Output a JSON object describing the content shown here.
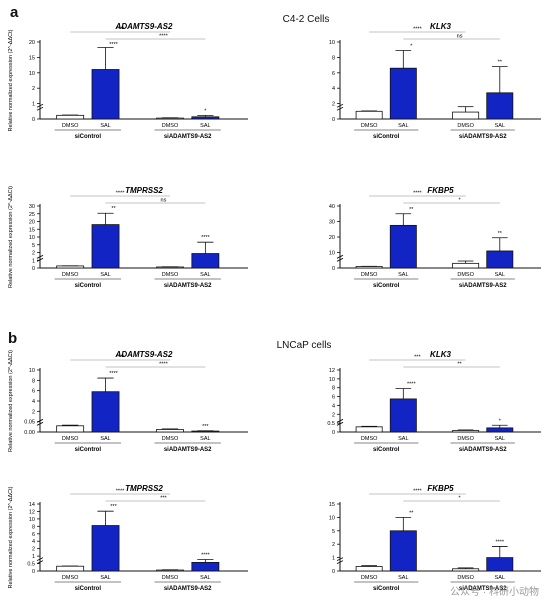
{
  "panels": [
    {
      "letter": "a",
      "section_title": "C4-2 Cells"
    },
    {
      "letter": "b",
      "section_title": "LNCaP cells"
    }
  ],
  "watermark": "公众号 · 科研小动物",
  "colors": {
    "bar_fill": "#1224c4",
    "ctrl_fill": "#ffffff",
    "axis": "#111111",
    "bracket": "#888888"
  },
  "chart_data": [
    {
      "type": "bar",
      "title": "ADAMTS9-AS2",
      "ylabel": "Relative normalized expression (2^-ΔΔCt)",
      "categories": [
        "DMSO",
        "SAL",
        "DMSO",
        "SAL"
      ],
      "groups": [
        "siControl",
        "siADAMTS9-AS2"
      ],
      "values": [
        1.0,
        13.5,
        0.25,
        0.6
      ],
      "errors": [
        0.1,
        6.0,
        0.1,
        0.35
      ],
      "yticks": [
        "0",
        "1",
        "2",
        "10",
        "15",
        "20"
      ],
      "ylim": [
        0,
        21
      ],
      "annotations": [
        "****",
        "****",
        "****",
        "*"
      ]
    },
    {
      "type": "bar",
      "title": "KLK3",
      "ylabel": "",
      "categories": [
        "DMSO",
        "SAL",
        "DMSO",
        "SAL"
      ],
      "groups": [
        "siControl",
        "siADAMTS9-AS2"
      ],
      "values": [
        1.0,
        6.6,
        0.9,
        3.4
      ],
      "errors": [
        0.05,
        2.3,
        0.7,
        3.4
      ],
      "yticks": [
        "0",
        "2",
        "4",
        "6",
        "8",
        "10"
      ],
      "ylim": [
        0,
        10
      ],
      "annotations": [
        "****",
        "ns",
        "*",
        "**"
      ]
    },
    {
      "type": "bar",
      "title": "TMPRSS2",
      "ylabel": "Relative normalized expression (2^-ΔΔCt)",
      "categories": [
        "DMSO",
        "SAL",
        "DMSO",
        "SAL"
      ],
      "groups": [
        "siControl",
        "siADAMTS9-AS2"
      ],
      "values": [
        1.0,
        21.0,
        0.5,
        7.0
      ],
      "errors": [
        0.1,
        5.5,
        0.1,
        5.5
      ],
      "yticks": [
        "0",
        "1",
        "2",
        "5",
        "10",
        "15",
        "20",
        "25",
        "30"
      ],
      "ylim": [
        0,
        30
      ],
      "annotations": [
        "****",
        "ns",
        "**",
        "****"
      ]
    },
    {
      "type": "bar",
      "title": "FKBP5",
      "ylabel": "",
      "categories": [
        "DMSO",
        "SAL",
        "DMSO",
        "SAL"
      ],
      "groups": [
        "siControl",
        "siADAMTS9-AS2"
      ],
      "values": [
        1.0,
        27.5,
        3.0,
        11.0
      ],
      "errors": [
        0.1,
        7.5,
        1.5,
        8.5
      ],
      "yticks": [
        "0",
        "10",
        "20",
        "30",
        "40"
      ],
      "ylim": [
        0,
        40
      ],
      "annotations": [
        "****",
        "*",
        "**",
        "**"
      ]
    },
    {
      "type": "bar",
      "title": "ADAMTS9-AS2",
      "ylabel": "Relative normalized expression (2^-ΔΔCt)",
      "categories": [
        "DMSO",
        "SAL",
        "DMSO",
        "SAL"
      ],
      "groups": [
        "siControl",
        "siADAMTS9-AS2"
      ],
      "values": [
        1.0,
        6.5,
        0.4,
        0.15
      ],
      "errors": [
        0.1,
        2.2,
        0.1,
        0.05
      ],
      "yticks": [
        "0.00",
        "0.05",
        "2",
        "4",
        "6",
        "8",
        "10"
      ],
      "ylim": [
        0,
        10
      ],
      "annotations": [
        "****",
        "****",
        "****",
        "***"
      ]
    },
    {
      "type": "bar",
      "title": "KLK3",
      "ylabel": "",
      "categories": [
        "DMSO",
        "SAL",
        "DMSO",
        "SAL"
      ],
      "groups": [
        "siControl",
        "siADAMTS9-AS2"
      ],
      "values": [
        1.0,
        6.4,
        0.3,
        0.8
      ],
      "errors": [
        0.1,
        2.0,
        0.1,
        0.5
      ],
      "yticks": [
        "0",
        "0.5",
        "2",
        "4",
        "6",
        "8",
        "10",
        "12"
      ],
      "ylim": [
        0,
        12
      ],
      "annotations": [
        "***",
        "**",
        "****",
        "*"
      ]
    },
    {
      "type": "bar",
      "title": "TMPRSS2",
      "ylabel": "Relative normalized expression (2^-ΔΔCt)",
      "categories": [
        "DMSO",
        "SAL",
        "DMSO",
        "SAL"
      ],
      "groups": [
        "siControl",
        "siADAMTS9-AS2"
      ],
      "values": [
        1.0,
        9.5,
        0.2,
        1.8
      ],
      "errors": [
        0.05,
        3.0,
        0.05,
        0.6
      ],
      "yticks": [
        "0",
        "0.5",
        "1",
        "2",
        "4",
        "6",
        "8",
        "10",
        "12",
        "14"
      ],
      "ylim": [
        0,
        14
      ],
      "annotations": [
        "****",
        "***",
        "***",
        "****"
      ]
    },
    {
      "type": "bar",
      "title": "FKBP5",
      "ylabel": "",
      "categories": [
        "DMSO",
        "SAL",
        "DMSO",
        "SAL"
      ],
      "groups": [
        "siControl",
        "siADAMTS9-AS2"
      ],
      "values": [
        1.0,
        9.0,
        0.5,
        3.0
      ],
      "errors": [
        0.2,
        3.0,
        0.2,
        2.5
      ],
      "yticks": [
        "0",
        "1",
        "2",
        "5",
        "10",
        "15"
      ],
      "ylim": [
        0,
        15
      ],
      "annotations": [
        "****",
        "*",
        "**",
        "****"
      ]
    }
  ]
}
